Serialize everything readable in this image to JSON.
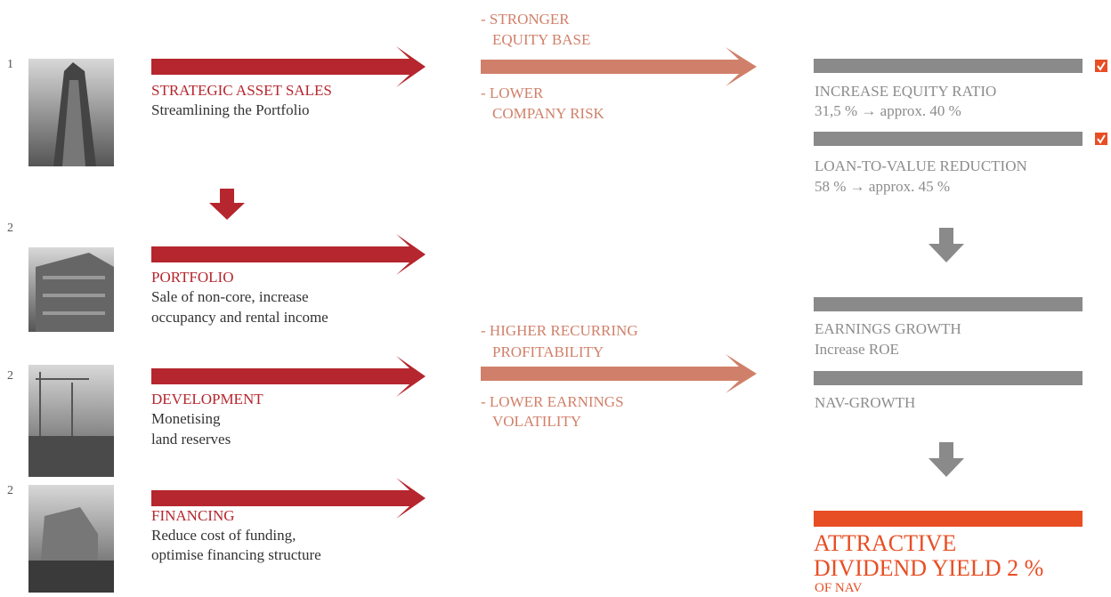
{
  "left": [
    {
      "number": "1",
      "title": "STRATEGIC ASSET SALES",
      "lines": [
        "Streamlining the Portfolio"
      ]
    },
    {
      "number": "2",
      "title": "PORTFOLIO",
      "lines": [
        "Sale of non-core, increase",
        "occupancy and rental income"
      ]
    },
    {
      "number": "2",
      "title": "DEVELOPMENT",
      "lines": [
        "Monetising",
        "land reserves"
      ]
    },
    {
      "number": "2",
      "title": "FINANCING",
      "lines": [
        "Reduce cost of funding,",
        "optimise financing structure"
      ]
    }
  ],
  "middle": [
    {
      "top": [
        "- STRONGER",
        "EQUITY BASE"
      ],
      "bottom": [
        "- LOWER",
        "COMPANY RISK"
      ]
    },
    {
      "top": [
        "- HIGHER RECURRING",
        "PROFITABILITY"
      ],
      "bottom": [
        "- LOWER EARNINGS",
        "VOLATILITY"
      ]
    }
  ],
  "right": [
    {
      "title": "INCREASE EQUITY RATIO",
      "detail": "31,5 % → approx. 40 %"
    },
    {
      "title": "LOAN-TO-VALUE REDUCTION",
      "detail": "58 % → approx. 45 %"
    },
    {
      "title": "EARNINGS GROWTH",
      "detail": "Increase ROE"
    },
    {
      "title": "NAV-GROWTH"
    }
  ],
  "result": {
    "lines": [
      "ATTRACTIVE",
      "DIVIDEND YIELD 2 %"
    ],
    "suffix": "OF NAV"
  }
}
